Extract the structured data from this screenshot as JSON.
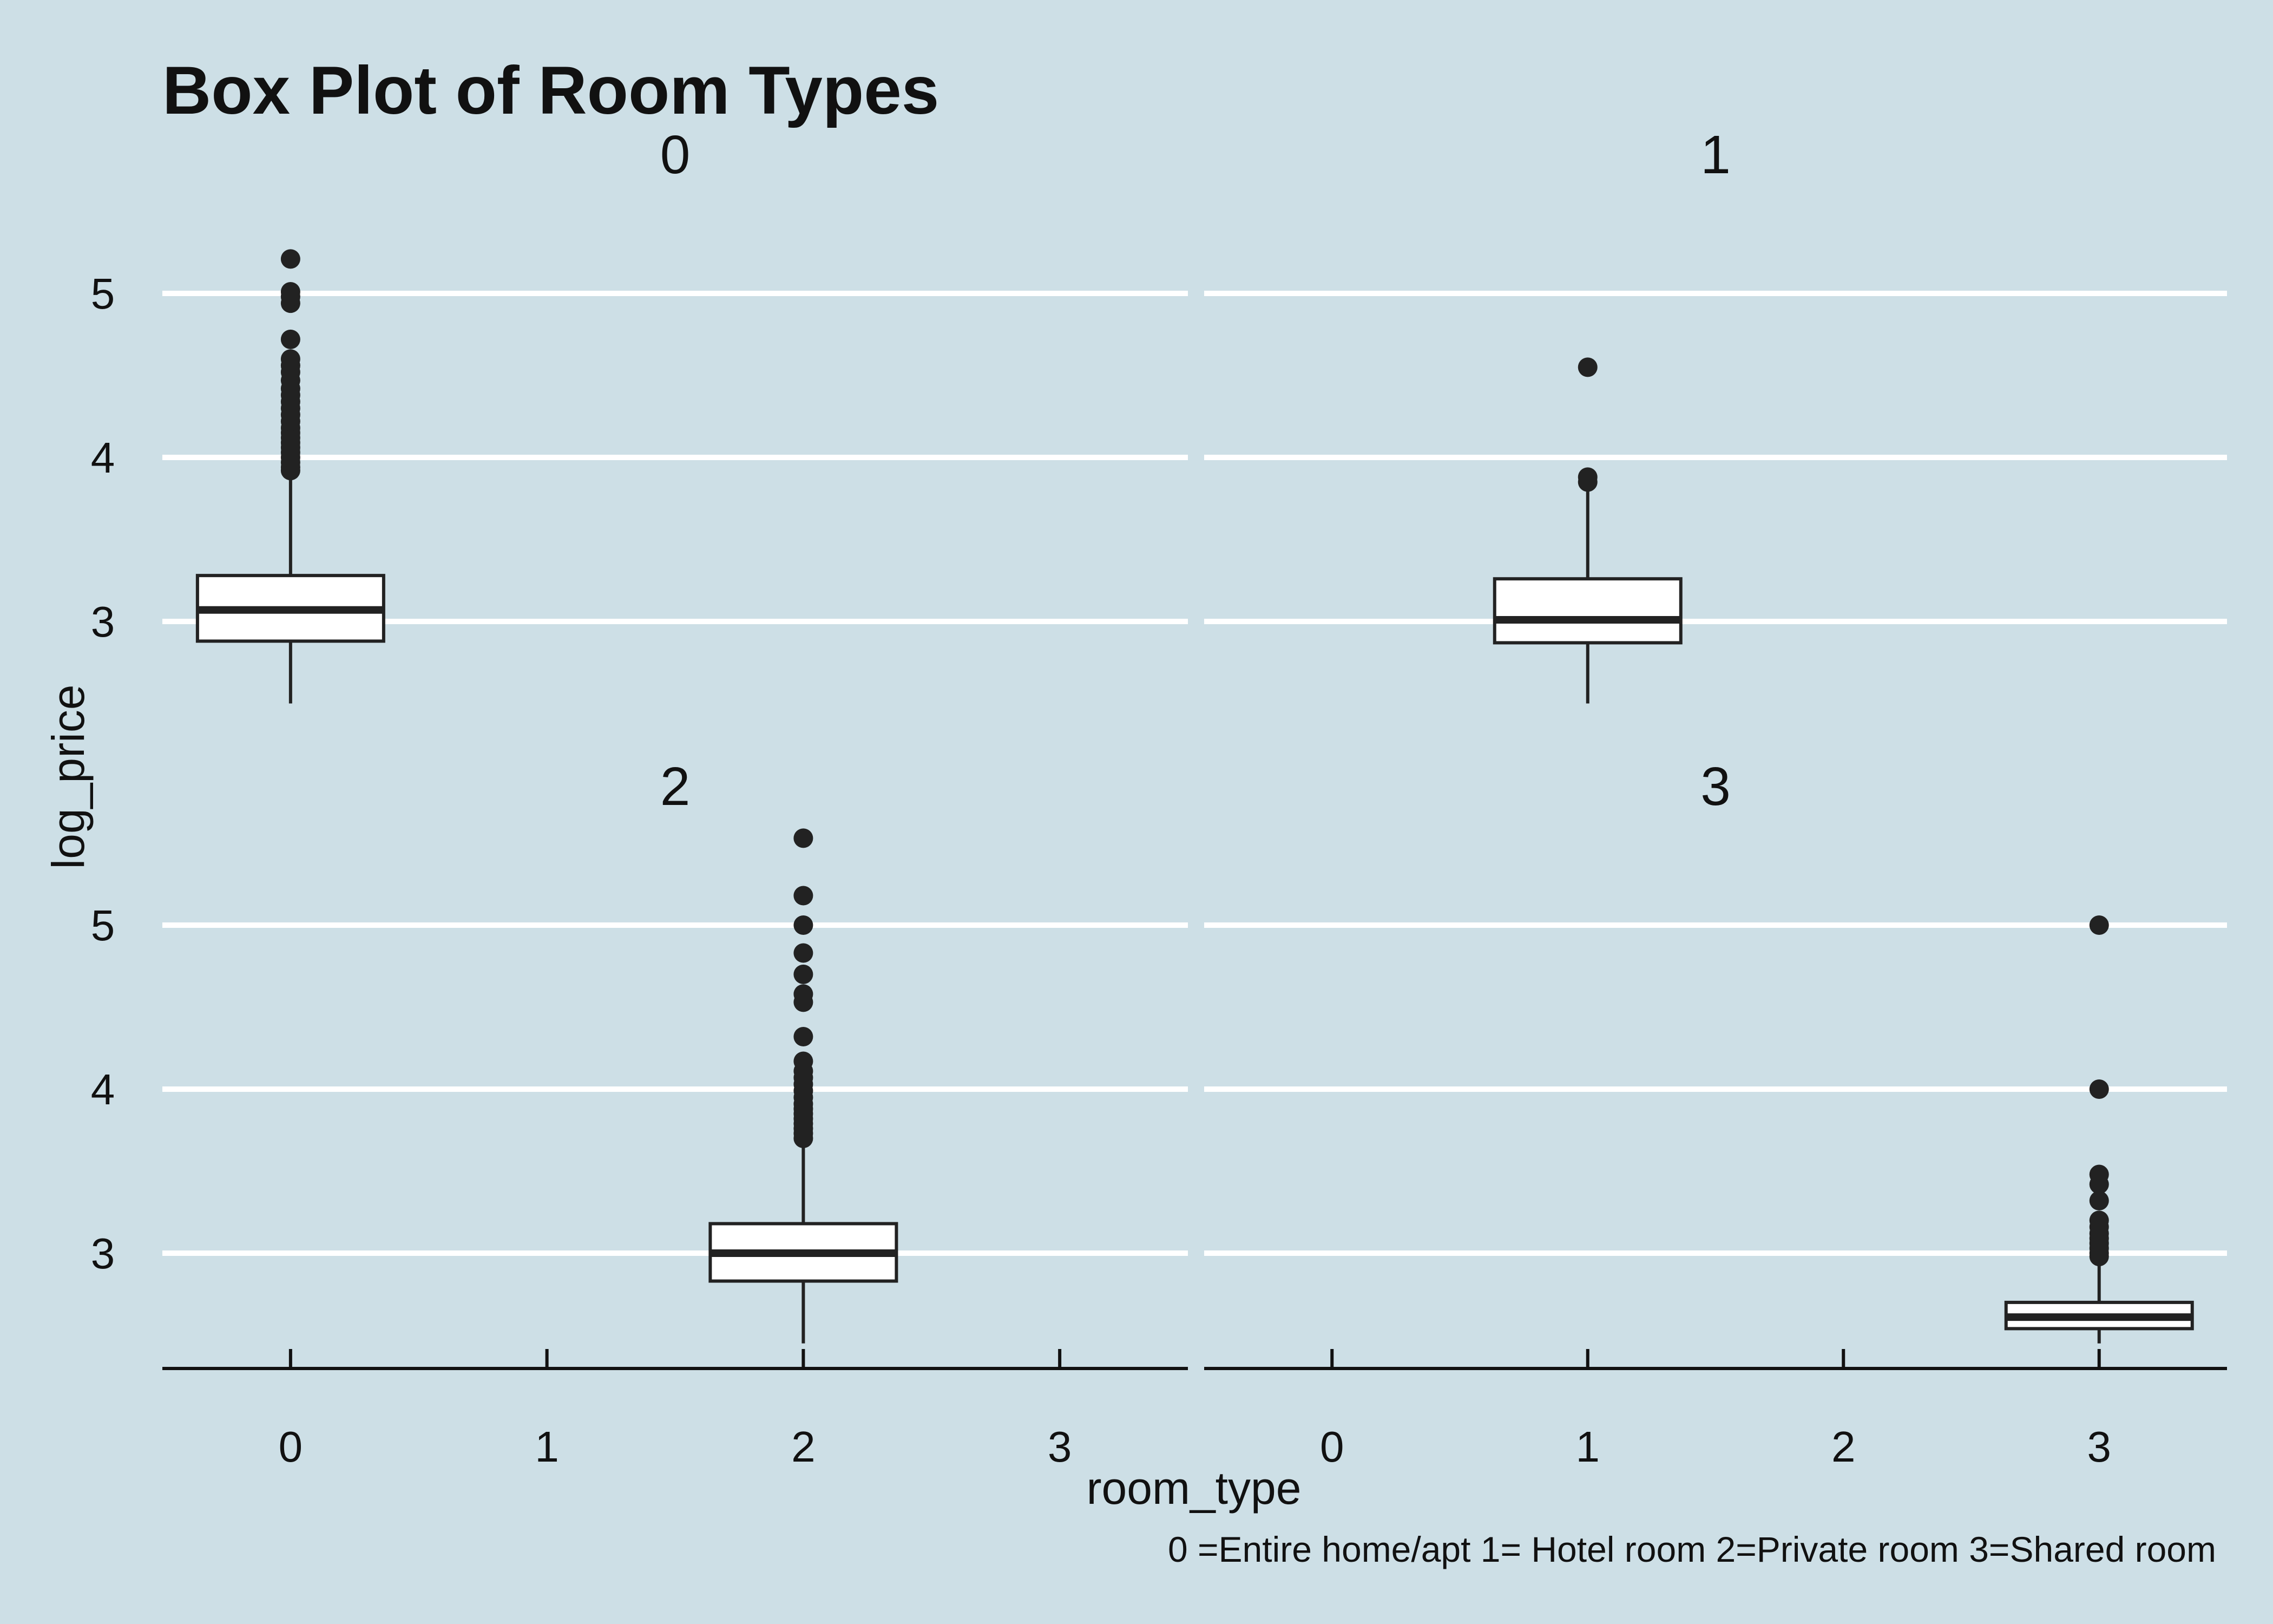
{
  "colors": {
    "background": "#cddfe6",
    "gridline": "#ffffff",
    "box_fill": "#ffffff",
    "box_stroke": "#222222",
    "outlier": "#222222",
    "axis": "#111111"
  },
  "chart_data": {
    "type": "box",
    "title": "Box Plot of Room Types",
    "xlabel": "room_type",
    "ylabel": "log_price",
    "caption": "0 =Entire home/apt 1= Hotel room 2=Private room 3=Shared room",
    "categories": [
      "0",
      "1",
      "2",
      "3"
    ],
    "yticks": [
      3,
      4,
      5
    ],
    "ylim": [
      2.3,
      5.5
    ],
    "grid": "horizontal major gridlines",
    "facets": [
      {
        "label": "0",
        "boxes": [
          {
            "category": "0",
            "lower_whisker": 2.5,
            "q1": 2.88,
            "median": 3.07,
            "q3": 3.28,
            "upper_whisker": 3.9,
            "outliers": [
              3.92,
              3.94,
              3.97,
              4.0,
              4.03,
              4.06,
              4.09,
              4.12,
              4.15,
              4.18,
              4.22,
              4.26,
              4.3,
              4.34,
              4.38,
              4.42,
              4.47,
              4.52,
              4.56,
              4.6,
              4.72,
              4.94,
              4.98,
              5.01,
              5.21
            ]
          }
        ]
      },
      {
        "label": "1",
        "boxes": [
          {
            "category": "1",
            "lower_whisker": 2.5,
            "q1": 2.87,
            "median": 3.01,
            "q3": 3.26,
            "upper_whisker": 3.82,
            "outliers": [
              3.85,
              3.88,
              4.55
            ]
          }
        ]
      },
      {
        "label": "2",
        "boxes": [
          {
            "category": "2",
            "lower_whisker": 2.45,
            "q1": 2.83,
            "median": 3.0,
            "q3": 3.18,
            "upper_whisker": 3.68,
            "outliers": [
              3.7,
              3.73,
              3.76,
              3.79,
              3.82,
              3.85,
              3.88,
              3.91,
              3.95,
              3.99,
              4.03,
              4.07,
              4.11,
              4.17,
              4.32,
              4.53,
              4.58,
              4.7,
              4.83,
              5.0,
              5.18,
              5.53
            ]
          }
        ]
      },
      {
        "label": "3",
        "boxes": [
          {
            "category": "3",
            "lower_whisker": 2.45,
            "q1": 2.54,
            "median": 2.61,
            "q3": 2.7,
            "upper_whisker": 2.96,
            "outliers": [
              2.98,
              3.0,
              3.03,
              3.06,
              3.09,
              3.12,
              3.16,
              3.2,
              3.32,
              3.42,
              3.48,
              4.0,
              5.0
            ]
          }
        ]
      }
    ]
  }
}
